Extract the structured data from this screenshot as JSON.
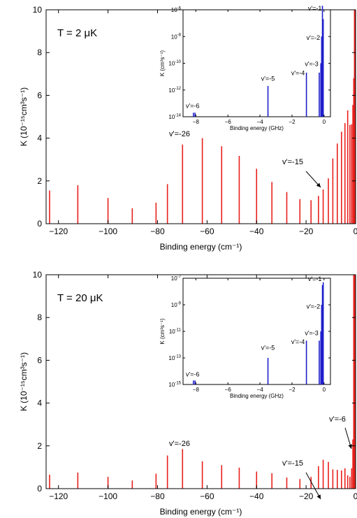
{
  "chart_data": [
    {
      "type": "bar",
      "annotation_title": "T = 2 μK",
      "xlabel": "Binding energy (cm⁻¹)",
      "ylabel": "K (10⁻¹⁵cm³s⁻¹)",
      "xlim": [
        -125,
        0
      ],
      "ylim": [
        0,
        10
      ],
      "xticks": [
        -120,
        -100,
        -80,
        -60,
        -40,
        -20,
        0
      ],
      "yticks": [
        0,
        2,
        4,
        6,
        8,
        10
      ],
      "color": "#e8201c",
      "x": [
        -123.6,
        -112.2,
        -100.0,
        -90.2,
        -80.6,
        -76.0,
        -69.9,
        -61.9,
        -54.1,
        -47.0,
        -40.0,
        -33.8,
        -27.8,
        -22.5,
        -18.0,
        -15.0,
        -13.1,
        -11.0,
        -9.2,
        -7.4,
        -5.7,
        -4.3,
        -3.2,
        -2.3,
        -1.6,
        -1.1,
        -0.75,
        -0.45,
        -0.22
      ],
      "values": [
        1.55,
        1.8,
        1.2,
        0.72,
        0.98,
        1.85,
        3.7,
        4.0,
        3.62,
        3.17,
        2.57,
        1.95,
        1.48,
        1.15,
        1.1,
        1.3,
        1.6,
        2.12,
        3.05,
        3.75,
        4.3,
        4.7,
        5.3,
        4.62,
        4.65,
        5.55,
        6.8,
        10,
        10
      ],
      "annotations": [
        {
          "text": "v'=-26",
          "x": -70
        },
        {
          "text": "v'=-15",
          "x": -13.1
        }
      ],
      "inset": {
        "type": "bar",
        "xlabel": "Binding energy (GHz)",
        "ylabel": "K (cm³s⁻¹)",
        "yscale": "log",
        "xlim": [
          -8.8,
          0.4
        ],
        "ylim": [
          1e-14,
          1e-06
        ],
        "xticks": [
          -8,
          -6,
          -4,
          -2,
          0
        ],
        "ytick_exponents": [
          -14,
          -12,
          -10,
          -8,
          -6
        ],
        "color": "#1f1fcc",
        "x": [
          -8.15,
          -8.05,
          -3.5,
          -1.1,
          -0.3,
          -0.1
        ],
        "values": [
          2e-14,
          2e-14,
          2e-12,
          2e-11,
          2e-11,
          2e-06
        ],
        "extra_x": [
          -0.2,
          -0.15,
          -0.05
        ],
        "extra_values": [
          1e-10,
          1e-08,
          2e-07
        ],
        "labels": [
          {
            "text": "v'=-1",
            "x": -0.15,
            "logy": -6.05
          },
          {
            "text": "v'=-2",
            "x": -0.25,
            "logy": -8.25
          },
          {
            "text": "v'=-3",
            "x": -0.35,
            "logy": -10.2
          },
          {
            "text": "v'=-4",
            "x": -1.2,
            "logy": -10.9
          },
          {
            "text": "v'=-5",
            "x": -3.5,
            "logy": -11.3
          },
          {
            "text": "v'=-6",
            "x": -8.1,
            "logy": -13.35
          }
        ]
      }
    },
    {
      "type": "bar",
      "annotation_title": "T =  20 μK",
      "xlabel": "Binding energy (cm⁻¹)",
      "ylabel": "K (10⁻¹⁵cm³s⁻¹)",
      "xlim": [
        -125,
        0
      ],
      "ylim": [
        0,
        10
      ],
      "xticks": [
        -120,
        -100,
        -80,
        -60,
        -40,
        -20,
        0
      ],
      "yticks": [
        0,
        2,
        4,
        6,
        8,
        10
      ],
      "color": "#e8201c",
      "x": [
        -123.6,
        -112.2,
        -100.0,
        -90.2,
        -80.6,
        -76.0,
        -69.9,
        -61.9,
        -54.1,
        -47.0,
        -40.0,
        -33.8,
        -27.8,
        -22.5,
        -18.0,
        -15.0,
        -13.1,
        -11.0,
        -9.2,
        -7.4,
        -5.7,
        -4.3,
        -3.2,
        -2.3,
        -1.6,
        -1.1,
        -0.75,
        -0.45,
        -0.22
      ],
      "values": [
        0.65,
        0.75,
        0.55,
        0.38,
        0.7,
        1.55,
        1.85,
        1.28,
        1.1,
        0.98,
        0.8,
        0.72,
        0.52,
        0.45,
        0.55,
        1.05,
        1.35,
        1.25,
        0.9,
        0.88,
        0.85,
        0.95,
        0.62,
        0.55,
        0.95,
        2.3,
        10,
        10,
        10
      ],
      "annotations": [
        {
          "text": "v'=-26",
          "x": -70
        },
        {
          "text": "v'=-15",
          "x": -13.1
        },
        {
          "text": "v'=-6",
          "x": -1.1
        }
      ],
      "inset": {
        "type": "bar",
        "xlabel": "Binding energy (GHz)",
        "ylabel": "K (cm³s⁻¹)",
        "yscale": "log",
        "xlim": [
          -8.8,
          0.4
        ],
        "ylim": [
          1e-15,
          1e-07
        ],
        "xticks": [
          -8,
          -6,
          -4,
          -2,
          0
        ],
        "ytick_exponents": [
          -15,
          -13,
          -11,
          -9,
          -7
        ],
        "color": "#1f1fcc",
        "x": [
          -8.15,
          -8.05,
          -3.5,
          -1.1,
          -0.3,
          -0.1
        ],
        "values": [
          2e-15,
          2e-15,
          1e-13,
          2e-12,
          2e-12,
          3e-08
        ],
        "extra_x": [
          -0.2,
          -0.15,
          -0.05
        ],
        "extra_values": [
          1e-11,
          1e-09,
          5e-08
        ],
        "labels": [
          {
            "text": "v'=-1",
            "x": -0.15,
            "logy": -7.2
          },
          {
            "text": "v'=-2",
            "x": -0.25,
            "logy": -9.3
          },
          {
            "text": "v'=-3",
            "x": -0.35,
            "logy": -11.3
          },
          {
            "text": "v'=-4",
            "x": -1.2,
            "logy": -11.95
          },
          {
            "text": "v'=-5",
            "x": -3.5,
            "logy": -12.4
          },
          {
            "text": "v'=-6",
            "x": -8.1,
            "logy": -14.4
          }
        ]
      }
    }
  ]
}
